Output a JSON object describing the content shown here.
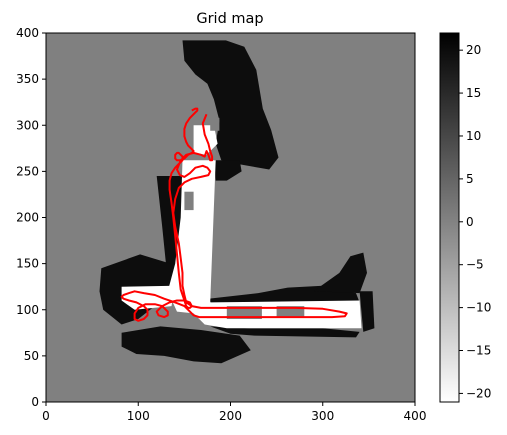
{
  "chart_data": {
    "type": "heatmap",
    "title": "Grid map",
    "xlabel": "",
    "ylabel": "",
    "xlim": [
      0,
      400
    ],
    "ylim": [
      0,
      400
    ],
    "x_ticks": [
      0,
      100,
      200,
      300,
      400
    ],
    "y_ticks": [
      0,
      50,
      100,
      150,
      200,
      250,
      300,
      350,
      400
    ],
    "grid": false,
    "colorbar": {
      "vmin": -21,
      "vmax": 22,
      "ticks": [
        20,
        15,
        10,
        5,
        0,
        -5,
        -10,
        -15,
        -20
      ],
      "tick_labels": [
        "20",
        "15",
        "10",
        "5",
        "0",
        "−5",
        "−10",
        "−15",
        "−20"
      ],
      "colormap": "gray_r",
      "background_value": 0
    },
    "free_space": [
      [
        [
          148,
          262
        ],
        [
          184,
          262
        ],
        [
          178,
          108
        ],
        [
          340,
          110
        ],
        [
          342,
          80
        ],
        [
          196,
          80
        ],
        [
          172,
          84
        ],
        [
          160,
          96
        ],
        [
          142,
          98
        ],
        [
          132,
          120
        ],
        [
          140,
          150
        ],
        [
          146,
          200
        ]
      ],
      [
        [
          160,
          300
        ],
        [
          182,
          300
        ],
        [
          186,
          280
        ],
        [
          174,
          268
        ],
        [
          160,
          270
        ]
      ],
      [
        [
          150,
          135
        ],
        [
          178,
          135
        ],
        [
          178,
          112
        ],
        [
          150,
          112
        ]
      ],
      [
        [
          82,
          125
        ],
        [
          140,
          126
        ],
        [
          136,
          104
        ],
        [
          96,
          100
        ],
        [
          82,
          110
        ]
      ],
      [
        [
          156,
          150
        ],
        [
          170,
          150
        ],
        [
          172,
          130
        ],
        [
          156,
          130
        ]
      ]
    ],
    "occupied_space": [
      [
        [
          148,
          392
        ],
        [
          195,
          392
        ],
        [
          215,
          385
        ],
        [
          228,
          360
        ],
        [
          235,
          318
        ],
        [
          244,
          295
        ],
        [
          252,
          265
        ],
        [
          242,
          252
        ],
        [
          208,
          258
        ],
        [
          190,
          262
        ],
        [
          184,
          280
        ],
        [
          188,
          305
        ],
        [
          182,
          328
        ],
        [
          175,
          345
        ],
        [
          162,
          355
        ],
        [
          150,
          370
        ]
      ],
      [
        [
          120,
          245
        ],
        [
          148,
          245
        ],
        [
          150,
          262
        ],
        [
          146,
          160
        ],
        [
          140,
          120
        ],
        [
          132,
          130
        ],
        [
          126,
          190
        ]
      ],
      [
        [
          182,
          262
        ],
        [
          210,
          262
        ],
        [
          212,
          250
        ],
        [
          196,
          240
        ],
        [
          184,
          240
        ]
      ],
      [
        [
          60,
          145
        ],
        [
          102,
          160
        ],
        [
          135,
          150
        ],
        [
          140,
          130
        ],
        [
          128,
          112
        ],
        [
          100,
          90
        ],
        [
          82,
          84
        ],
        [
          62,
          100
        ],
        [
          58,
          120
        ]
      ],
      [
        [
          82,
          75
        ],
        [
          124,
          82
        ],
        [
          168,
          78
        ],
        [
          210,
          72
        ],
        [
          222,
          56
        ],
        [
          190,
          42
        ],
        [
          160,
          44
        ],
        [
          128,
          50
        ],
        [
          98,
          52
        ],
        [
          82,
          60
        ]
      ],
      [
        [
          176,
          112
        ],
        [
          230,
          118
        ],
        [
          262,
          124
        ],
        [
          300,
          126
        ],
        [
          336,
          118
        ],
        [
          340,
          108
        ],
        [
          180,
          106
        ]
      ],
      [
        [
          178,
          82
        ],
        [
          220,
          80
        ],
        [
          300,
          80
        ],
        [
          340,
          76
        ],
        [
          336,
          70
        ],
        [
          226,
          72
        ],
        [
          200,
          74
        ]
      ],
      [
        [
          290,
          120
        ],
        [
          318,
          140
        ],
        [
          330,
          158
        ],
        [
          344,
          162
        ],
        [
          348,
          140
        ],
        [
          340,
          118
        ]
      ],
      [
        [
          340,
          120
        ],
        [
          354,
          120
        ],
        [
          356,
          80
        ],
        [
          344,
          76
        ]
      ]
    ],
    "unknown_islands": [
      [
        [
          178,
          310
        ],
        [
          188,
          308
        ],
        [
          188,
          294
        ],
        [
          178,
          294
        ]
      ],
      [
        [
          150,
          228
        ],
        [
          160,
          228
        ],
        [
          160,
          208
        ],
        [
          150,
          208
        ]
      ],
      [
        [
          196,
          104
        ],
        [
          234,
          104
        ],
        [
          234,
          90
        ],
        [
          196,
          90
        ]
      ],
      [
        [
          250,
          104
        ],
        [
          280,
          104
        ],
        [
          280,
          92
        ],
        [
          250,
          92
        ]
      ]
    ],
    "series": [
      {
        "type": "line",
        "color": "#ff0000",
        "x": [
          174,
          170,
          172,
          176,
          178,
          180,
          180,
          178,
          176,
          174,
          172,
          168,
          160,
          152,
          146,
          142,
          145,
          150,
          156,
          162,
          170,
          175,
          178,
          176,
          168,
          158,
          150,
          144,
          140,
          138,
          140,
          144,
          146,
          148,
          148,
          150,
          152,
          158,
          168,
          190,
          230,
          270,
          300,
          318,
          326,
          324,
          310,
          280,
          240,
          200,
          176,
          166,
          160,
          156,
          150,
          140,
          128,
          118,
          106,
          96,
          90,
          84,
          82,
          84,
          90,
          98,
          106,
          110,
          110,
          106,
          100,
          96,
          96,
          100,
          108,
          118,
          126,
          132,
          132,
          128,
          122,
          120,
          126,
          134,
          142,
          150,
          156,
          158,
          156,
          154,
          152,
          150,
          146,
          144,
          142,
          140,
          138,
          136,
          134,
          134,
          136,
          140,
          144,
          148,
          148,
          146,
          144,
          142,
          140,
          140,
          142,
          146,
          150,
          154,
          158,
          160,
          158,
          154,
          152,
          150,
          150,
          152,
          156,
          160,
          164,
          164,
          162,
          158
        ],
        "y": [
          312,
          302,
          290,
          280,
          272,
          266,
          262,
          262,
          268,
          272,
          266,
          268,
          270,
          268,
          262,
          252,
          246,
          244,
          248,
          254,
          256,
          254,
          250,
          246,
          244,
          242,
          238,
          232,
          220,
          205,
          190,
          172,
          156,
          140,
          126,
          116,
          108,
          104,
          102,
          102,
          102,
          102,
          101,
          98,
          96,
          93,
          92,
          92,
          92,
          92,
          92,
          92,
          94,
          98,
          104,
          108,
          112,
          116,
          118,
          120,
          118,
          116,
          114,
          112,
          110,
          108,
          104,
          100,
          94,
          90,
          88,
          90,
          96,
          102,
          106,
          106,
          104,
          98,
          94,
          92,
          94,
          98,
          104,
          108,
          110,
          110,
          108,
          104,
          102,
          102,
          104,
          110,
          122,
          140,
          160,
          180,
          200,
          216,
          230,
          240,
          248,
          254,
          258,
          262,
          266,
          268,
          270,
          270,
          268,
          264,
          262,
          262,
          264,
          268,
          270,
          272,
          274,
          278,
          282,
          288,
          296,
          302,
          308,
          312,
          316,
          318,
          318,
          316
        ]
      }
    ]
  }
}
